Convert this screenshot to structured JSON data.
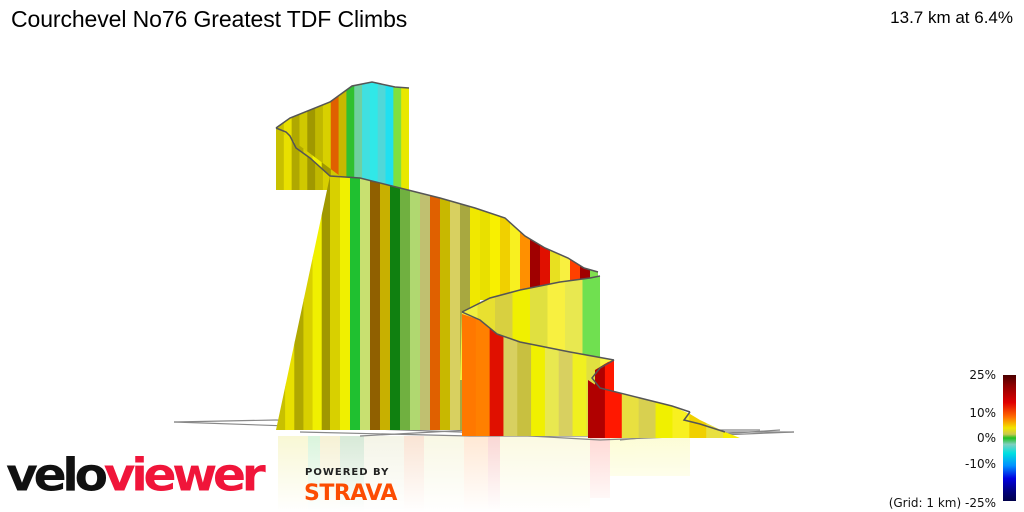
{
  "header": {
    "title": "Courchevel No76 Greatest TDF Climbs",
    "stats": "13.7 km at 6.4%"
  },
  "legend": {
    "labels": [
      "25%",
      "10%",
      "0%",
      "-10%",
      "(Grid: 1 km) -25%"
    ],
    "colors": {
      "max": "#4a0000",
      "high": "#e00000",
      "mid_high": "#ff6a00",
      "flat_plus": "#f2e600",
      "zero": "#20c020",
      "mid_low": "#00e0e0",
      "low": "#0000e0",
      "min": "#00004a"
    }
  },
  "branding": {
    "logo_part1": "velo",
    "logo_part2": "viewer",
    "powered_by": "POWERED BY",
    "partner": "STRAVA"
  },
  "profile": {
    "segments": [
      {
        "name": "summit-wall",
        "bands": [
          "#c8c000",
          "#e8e000",
          "#b0a800",
          "#d0c800",
          "#a09800",
          "#c0b800",
          "#d8d000",
          "#e06000",
          "#c8b800",
          "#30c030",
          "#70d0a0",
          "#40e0e0",
          "#30e8e8",
          "#50d8d8",
          "#20e0f0",
          "#80e040",
          "#e8e800"
        ]
      },
      {
        "name": "middle-ridge",
        "bands": [
          "#d8d000",
          "#f0f000",
          "#20c030",
          "#c8e070",
          "#906000",
          "#c8b000",
          "#108010",
          "#70b040",
          "#b0d870",
          "#c0c070",
          "#e06000",
          "#c8b800",
          "#d8d060",
          "#a8a840",
          "#f0e800",
          "#e8e000",
          "#f8f000",
          "#f0d000",
          "#f8f020",
          "#ff9000",
          "#a00000",
          "#e01000",
          "#e8e020",
          "#f8f040",
          "#ff4000",
          "#a00000",
          "#80e050"
        ]
      },
      {
        "name": "lower-front",
        "bands": [
          "#ff7800",
          "#ff8000",
          "#e01000",
          "#d8d060",
          "#c8c040",
          "#f0f000",
          "#e8e850",
          "#d8d060",
          "#f0f020",
          "#e0e040",
          "#f8f840"
        ]
      },
      {
        "name": "bottom-front",
        "bands": [
          "#b00000",
          "#ff1800",
          "#e8e040",
          "#d8d050",
          "#f0f000",
          "#f8f020",
          "#f0d000",
          "#e8e040",
          "#f8f000"
        ]
      }
    ]
  }
}
